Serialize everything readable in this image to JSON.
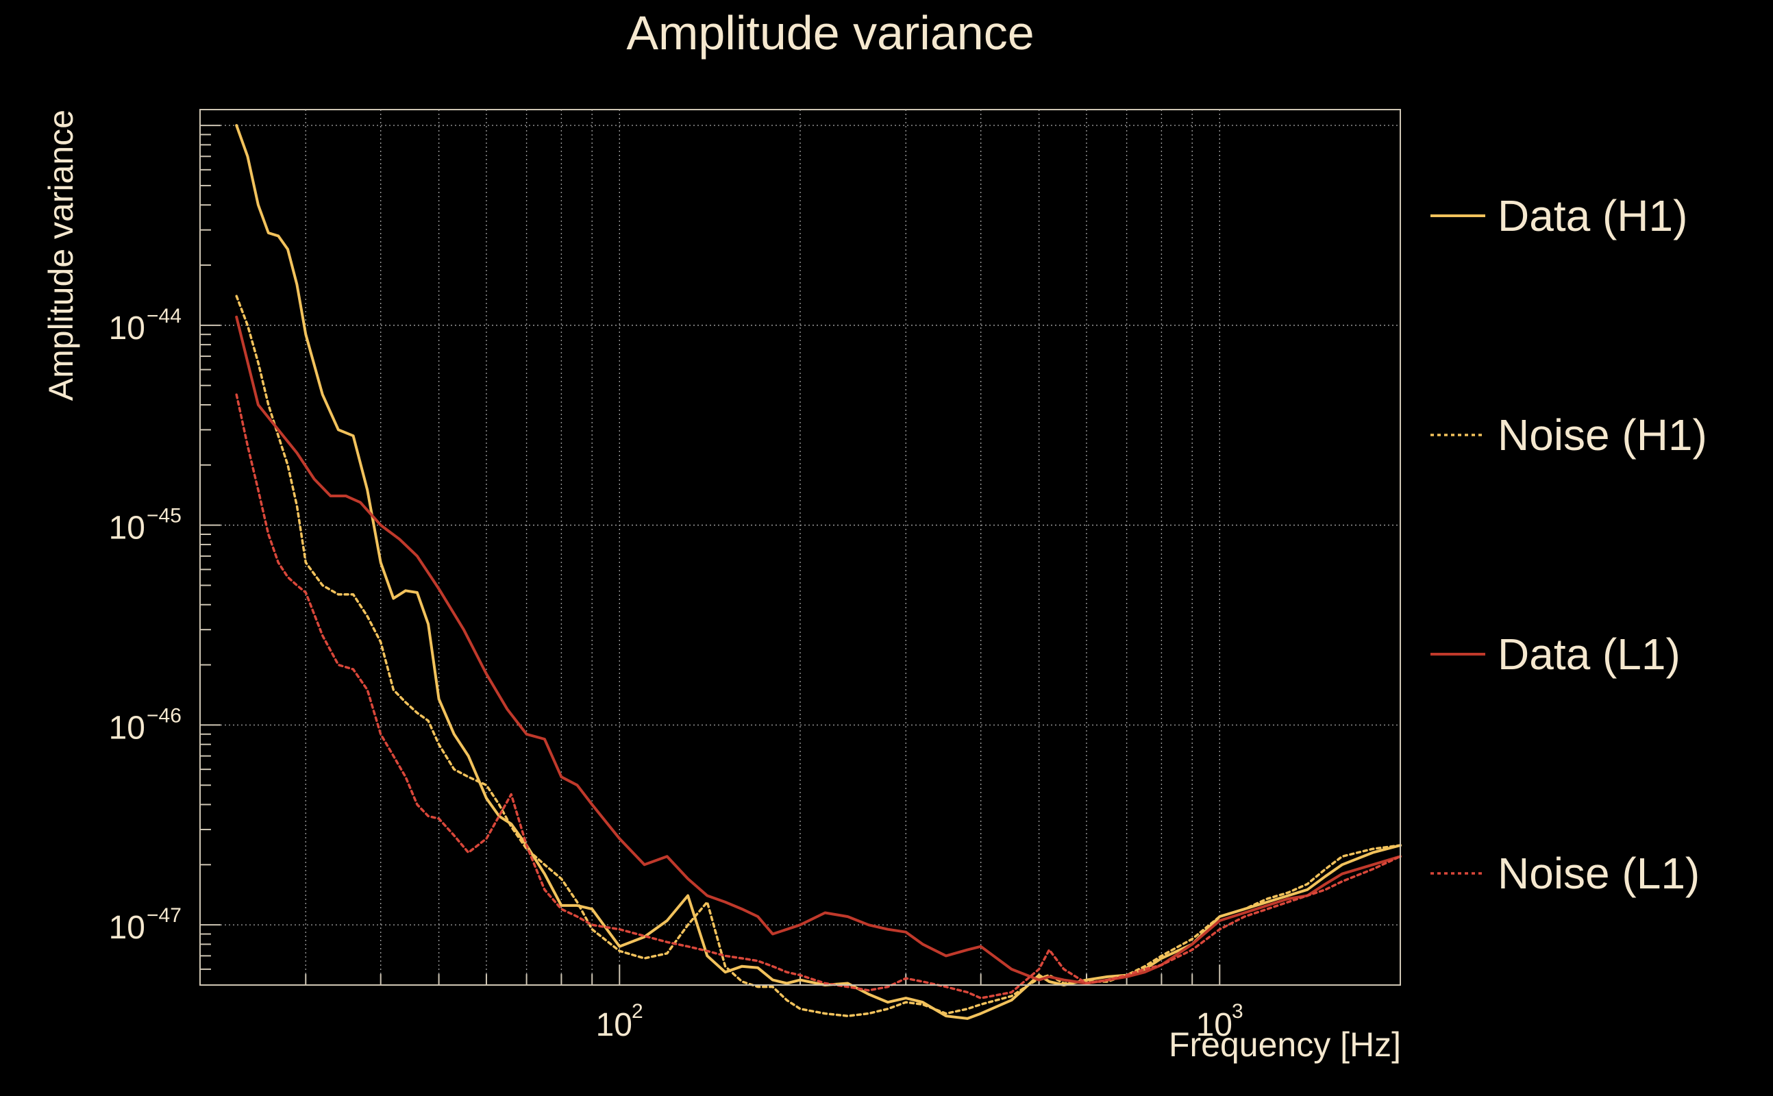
{
  "chart_data": {
    "type": "line",
    "title": "Amplitude variance",
    "xlabel": "Frequency [Hz]",
    "ylabel": "Amplitude variance",
    "xscale": "log",
    "yscale": "log",
    "xlim": [
      20,
      2000
    ],
    "ylim": [
      5e-48,
      1.2e-43
    ],
    "x_ticks": [
      {
        "base": "10",
        "exp": "2"
      },
      {
        "base": "10",
        "exp": "3"
      }
    ],
    "y_ticks": [
      {
        "base": "10",
        "exp": "−44"
      },
      {
        "base": "10",
        "exp": "−45"
      },
      {
        "base": "10",
        "exp": "−46"
      },
      {
        "base": "10",
        "exp": "−47"
      }
    ],
    "grid": true,
    "legend_position": "right",
    "series": [
      {
        "name": "Data (H1)",
        "color": "#f2c25c",
        "style": "solid",
        "x": [
          23,
          24,
          25,
          26,
          27,
          28,
          29,
          30,
          32,
          34,
          36,
          38,
          40,
          42,
          44,
          46,
          48,
          50,
          53,
          56,
          60,
          63,
          66,
          70,
          75,
          80,
          85,
          90,
          100,
          110,
          120,
          130,
          140,
          150,
          160,
          170,
          180,
          190,
          200,
          220,
          240,
          260,
          280,
          300,
          320,
          350,
          380,
          400,
          450,
          500,
          520,
          550,
          600,
          650,
          700,
          750,
          800,
          900,
          1000,
          1100,
          1200,
          1300,
          1400,
          1500,
          1600,
          1800,
          2000
        ],
        "y": [
          1e-43,
          7e-44,
          4e-44,
          2.9e-44,
          2.8e-44,
          2.4e-44,
          1.6e-44,
          9e-45,
          4.5e-45,
          3e-45,
          2.8e-45,
          1.5e-45,
          6.5e-46,
          4.3e-46,
          4.7e-46,
          4.6e-46,
          3.2e-46,
          1.35e-46,
          9e-47,
          7e-47,
          4.3e-47,
          3.5e-47,
          3.2e-47,
          2.5e-47,
          1.8e-47,
          1.25e-47,
          1.25e-47,
          1.2e-47,
          7.8e-48,
          8.7e-48,
          1.05e-47,
          1.4e-47,
          7e-48,
          5.8e-48,
          6.2e-48,
          6.1e-48,
          5.3e-48,
          5.1e-48,
          5.3e-48,
          5e-48,
          5.1e-48,
          4.5e-48,
          4.1e-48,
          4.3e-48,
          4.1e-48,
          3.5e-48,
          3.4e-48,
          3.6e-48,
          4.2e-48,
          5.6e-48,
          5.2e-48,
          5e-48,
          5.3e-48,
          5.5e-48,
          5.6e-48,
          6e-48,
          6.8e-48,
          8e-48,
          1.1e-47,
          1.2e-47,
          1.3e-47,
          1.4e-47,
          1.5e-47,
          1.75e-47,
          2e-47,
          2.3e-47,
          2.5e-47
        ]
      },
      {
        "name": "Noise (H1)",
        "color": "#f2c25c",
        "style": "dotted",
        "x": [
          23,
          24,
          25,
          26,
          27,
          28,
          29,
          30,
          32,
          34,
          36,
          38,
          40,
          42,
          44,
          46,
          48,
          50,
          53,
          56,
          60,
          63,
          66,
          70,
          75,
          80,
          85,
          90,
          100,
          110,
          120,
          130,
          140,
          150,
          160,
          170,
          180,
          190,
          200,
          220,
          240,
          260,
          280,
          300,
          320,
          350,
          380,
          400,
          450,
          500,
          520,
          550,
          600,
          650,
          700,
          750,
          800,
          900,
          1000,
          1100,
          1200,
          1300,
          1400,
          1500,
          1600,
          1800,
          2000
        ],
        "y": [
          1.4e-44,
          1e-44,
          6.5e-45,
          4e-45,
          2.8e-45,
          2e-45,
          1.25e-45,
          6.5e-46,
          5e-46,
          4.5e-46,
          4.5e-46,
          3.5e-46,
          2.6e-46,
          1.5e-46,
          1.3e-46,
          1.15e-46,
          1.05e-46,
          8e-47,
          6e-47,
          5.5e-47,
          5e-47,
          4e-47,
          3.1e-47,
          2.4e-47,
          2e-47,
          1.7e-47,
          1.3e-47,
          9.5e-48,
          7.4e-48,
          6.8e-48,
          7.2e-48,
          1e-47,
          1.3e-47,
          6.2e-48,
          5.2e-48,
          4.9e-48,
          4.9e-48,
          4.2e-48,
          3.8e-48,
          3.6e-48,
          3.5e-48,
          3.6e-48,
          3.8e-48,
          4.1e-48,
          4e-48,
          3.6e-48,
          3.8e-48,
          4e-48,
          4.4e-48,
          5.4e-48,
          5.6e-48,
          5.1e-48,
          5.2e-48,
          5.2e-48,
          5.6e-48,
          6.2e-48,
          7e-48,
          8.5e-48,
          1.1e-47,
          1.2e-47,
          1.35e-47,
          1.45e-47,
          1.6e-47,
          1.9e-47,
          2.2e-47,
          2.4e-47,
          2.5e-47
        ]
      },
      {
        "name": "Data (L1)",
        "color": "#c0392b",
        "style": "solid",
        "x": [
          23,
          25,
          27,
          29,
          31,
          33,
          35,
          37,
          40,
          43,
          46,
          50,
          55,
          60,
          65,
          70,
          75,
          80,
          85,
          90,
          100,
          110,
          120,
          130,
          140,
          150,
          160,
          170,
          180,
          190,
          200,
          220,
          240,
          260,
          280,
          300,
          320,
          350,
          380,
          400,
          450,
          500,
          520,
          550,
          600,
          650,
          700,
          750,
          800,
          900,
          1000,
          1100,
          1200,
          1300,
          1400,
          1500,
          1600,
          1800,
          2000
        ],
        "y": [
          1.1e-44,
          4e-45,
          3e-45,
          2.3e-45,
          1.7e-45,
          1.4e-45,
          1.4e-45,
          1.3e-45,
          1e-45,
          8.5e-46,
          7e-46,
          4.8e-46,
          3e-46,
          1.8e-46,
          1.2e-46,
          9e-47,
          8.5e-47,
          5.5e-47,
          5e-47,
          4e-47,
          2.7e-47,
          2e-47,
          2.2e-47,
          1.7e-47,
          1.4e-47,
          1.3e-47,
          1.2e-47,
          1.1e-47,
          9e-48,
          9.5e-48,
          1e-47,
          1.15e-47,
          1.1e-47,
          1e-47,
          9.5e-48,
          9.2e-48,
          8e-48,
          7e-48,
          7.5e-48,
          7.8e-48,
          6e-48,
          5.3e-48,
          5.5e-48,
          5.3e-48,
          5.1e-48,
          5.3e-48,
          5.5e-48,
          5.8e-48,
          6.3e-48,
          8e-48,
          1.05e-47,
          1.15e-47,
          1.25e-47,
          1.35e-47,
          1.4e-47,
          1.6e-47,
          1.8e-47,
          2e-47,
          2.2e-47
        ]
      },
      {
        "name": "Noise (L1)",
        "color": "#d9473a",
        "style": "dotted",
        "x": [
          23,
          24,
          25,
          26,
          27,
          28,
          29,
          30,
          32,
          34,
          36,
          38,
          40,
          42,
          44,
          46,
          48,
          50,
          53,
          56,
          60,
          63,
          66,
          70,
          75,
          80,
          85,
          90,
          100,
          110,
          120,
          130,
          140,
          150,
          160,
          170,
          180,
          190,
          200,
          220,
          240,
          260,
          280,
          300,
          320,
          350,
          380,
          400,
          450,
          500,
          520,
          550,
          600,
          650,
          700,
          750,
          800,
          900,
          1000,
          1100,
          1200,
          1300,
          1400,
          1500,
          1600,
          1800,
          2000
        ],
        "y": [
          4.5e-45,
          2.5e-45,
          1.5e-45,
          9e-46,
          6.5e-46,
          5.5e-46,
          5e-46,
          4.6e-46,
          2.8e-46,
          2e-46,
          1.9e-46,
          1.5e-46,
          9e-47,
          7e-47,
          5.5e-47,
          4e-47,
          3.5e-47,
          3.4e-47,
          2.8e-47,
          2.3e-47,
          2.7e-47,
          3.5e-47,
          4.5e-47,
          2.5e-47,
          1.5e-47,
          1.2e-47,
          1.1e-47,
          1e-47,
          9.5e-48,
          8.8e-48,
          8.2e-48,
          7.8e-48,
          7.4e-48,
          7e-48,
          6.8e-48,
          6.6e-48,
          6.2e-48,
          5.8e-48,
          5.6e-48,
          5.1e-48,
          4.9e-48,
          4.7e-48,
          4.9e-48,
          5.4e-48,
          5.2e-48,
          4.9e-48,
          4.6e-48,
          4.3e-48,
          4.6e-48,
          6e-48,
          7.5e-48,
          6e-48,
          5.1e-48,
          5.3e-48,
          5.6e-48,
          6e-48,
          6.3e-48,
          7.5e-48,
          9.5e-48,
          1.1e-47,
          1.2e-47,
          1.3e-47,
          1.4e-47,
          1.5e-47,
          1.65e-47,
          1.9e-47,
          2.2e-47
        ]
      }
    ]
  }
}
